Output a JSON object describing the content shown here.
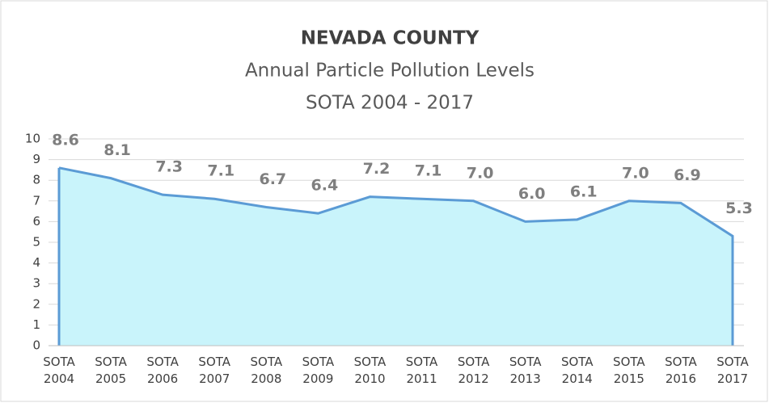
{
  "chart_data": {
    "type": "area",
    "title": "NEVADA COUNTY",
    "subtitle": [
      "Annual Particle Pollution Levels",
      "SOTA 2004 - 2017"
    ],
    "categories": [
      "SOTA 2004",
      "SOTA 2005",
      "SOTA 2006",
      "SOTA 2007",
      "SOTA 2008",
      "SOTA 2009",
      "SOTA 2010",
      "SOTA 2011",
      "SOTA 2012",
      "SOTA 2013",
      "SOTA 2014",
      "SOTA 2015",
      "SOTA 2016",
      "SOTA 2017"
    ],
    "values": [
      8.6,
      8.1,
      7.3,
      7.1,
      6.7,
      6.4,
      7.2,
      7.1,
      7.0,
      6.0,
      6.1,
      7.0,
      6.9,
      5.3
    ],
    "value_labels": [
      "8.6",
      "8.1",
      "7.3",
      "7.1",
      "6.7",
      "6.4",
      "7.2",
      "7.1",
      "7.0",
      "6.0",
      "6.1",
      "7.0",
      "6.9",
      "5.3"
    ],
    "color": "#5b9bd5",
    "fill": "#c9f4fb",
    "ylim": [
      0,
      10
    ],
    "yticks": [
      0,
      1,
      2,
      3,
      4,
      5,
      6,
      7,
      8,
      9,
      10
    ],
    "grid": true
  }
}
